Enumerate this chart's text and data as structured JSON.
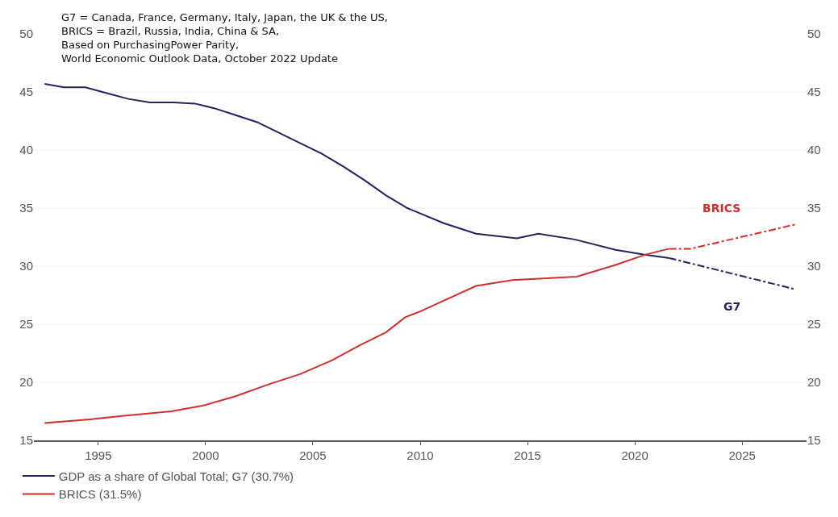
{
  "chart_data": {
    "type": "line",
    "title": "G7 = Canada, France, Germany, Italy, Japan, the UK & the US,\nBRICS = Brazil, Russia, India, China & SA,\nBased on PurchasingPower Parity,\nWorld Economic Outlook Data, October 2022 Update",
    "series": [
      {
        "name": "GDP as a share of Global Total; G7 (30.7%)",
        "color": "#23235e",
        "line_style": "solid",
        "x": [
          1992.5,
          1993.4,
          1994.4,
          1995.4,
          1996.4,
          1997.4,
          1998.5,
          1999.5,
          2000.4,
          2001.4,
          2002.4,
          2003.4,
          2004.4,
          2005.4,
          2006.4,
          2007.4,
          2008.4,
          2009.4,
          2011.1,
          2012.6,
          2014.5,
          2015.5,
          2017.2,
          2019.1,
          2020.4,
          2021.6
        ],
        "values": [
          45.7,
          45.4,
          45.4,
          44.9,
          44.4,
          44.1,
          44.1,
          44.0,
          43.6,
          43.0,
          42.4,
          41.5,
          40.6,
          39.7,
          38.6,
          37.4,
          36.1,
          35.0,
          33.7,
          32.8,
          32.4,
          32.8,
          32.3,
          31.4,
          31.0,
          30.7
        ]
      },
      {
        "color": "#23235e",
        "line_style": "dashed",
        "x": [
          2021.6,
          2027.5
        ],
        "values": [
          30.7,
          28.0
        ]
      },
      {
        "name": "BRICS (31.5%)",
        "color": "#cf2f2f",
        "line_style": "solid",
        "x": [
          1992.5,
          1994.6,
          1996.1,
          1998.4,
          1999.9,
          2001.4,
          2002.9,
          2004.4,
          2005.9,
          2007.2,
          2008.4,
          2009.3,
          2010.0,
          2012.6,
          2014.3,
          2017.3,
          2019.1,
          2020.5,
          2021.6
        ],
        "values": [
          16.5,
          16.8,
          17.1,
          17.5,
          18.0,
          18.8,
          19.8,
          20.7,
          21.9,
          23.2,
          24.3,
          25.6,
          26.1,
          28.3,
          28.8,
          29.1,
          30.1,
          31.0,
          31.5
        ]
      },
      {
        "color": "#cf2f2f",
        "line_style": "dashed",
        "x": [
          2021.6,
          2022.6,
          2027.5
        ],
        "values": [
          31.5,
          31.5,
          33.6
        ]
      }
    ],
    "xlim": [
      1992,
      2028
    ],
    "xticks": [
      1995,
      2000,
      2005,
      2010,
      2015,
      2020,
      2025
    ],
    "ylim": [
      15,
      50
    ],
    "yticks": [
      15,
      20,
      25,
      30,
      35,
      40,
      45,
      50
    ],
    "y2lim": [
      15,
      50
    ],
    "y2ticks": [
      15,
      20,
      25,
      30,
      35,
      40,
      45,
      50
    ],
    "annotations": [
      "BRICS",
      "G7"
    ],
    "grid": "y",
    "legend": "bottom left",
    "marker": "none"
  }
}
